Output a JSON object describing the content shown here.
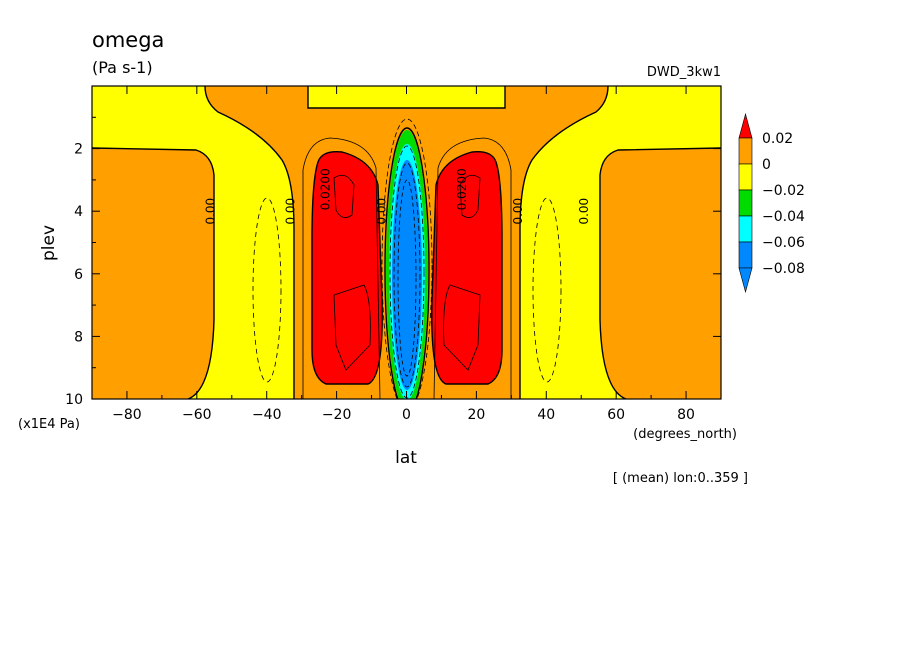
{
  "colors": {
    "red": "#ff0000",
    "orange": "#ff9f00",
    "yellow": "#ffff00",
    "green": "#00dc00",
    "cyan": "#00ffff",
    "blue": "#0088ff",
    "line": "#000000"
  },
  "chart_data": {
    "type": "heatmap",
    "title": "omega",
    "units": "(Pa s-1)",
    "dataset_label": "DWD_3kw1",
    "xlabel": "lat",
    "ylabel": "plev",
    "x_units": "(degrees_north)",
    "y_units": "(x1E4 Pa)",
    "footnote": "[ (mean) lon:0..359 ]",
    "xlim": [
      -90,
      90
    ],
    "ylim": [
      10,
      0
    ],
    "x_ticks": [
      -80,
      -60,
      -40,
      -20,
      0,
      20,
      40,
      60,
      80
    ],
    "y_ticks": [
      2,
      4,
      6,
      8,
      10
    ],
    "colorbar": {
      "labels": [
        "0.02",
        "0",
        "−0.02",
        "−0.04",
        "−0.06",
        "−0.08"
      ],
      "values": [
        0.02,
        0,
        -0.02,
        -0.04,
        -0.06,
        -0.08
      ],
      "bins": [
        {
          "range": "> 0.02",
          "color": "#ff0000"
        },
        {
          "range": "0 to 0.02",
          "color": "#ff9f00"
        },
        {
          "range": "-0.02 to 0",
          "color": "#ffff00"
        },
        {
          "range": "-0.04 to -0.02",
          "color": "#00dc00"
        },
        {
          "range": "-0.06 to -0.04",
          "color": "#00ffff"
        },
        {
          "range": "-0.08 to -0.06",
          "color": "#0088ff"
        },
        {
          "range": "< -0.08",
          "color": "#0088ff"
        }
      ]
    },
    "contour_labels": [
      {
        "text": "0.00",
        "lat": -55,
        "plev": 4.0
      },
      {
        "text": "0.00",
        "lat": -32,
        "plev": 4.0
      },
      {
        "text": "0.0200",
        "lat": -22,
        "plev": 3.3
      },
      {
        "text": "0.00",
        "lat": -6,
        "plev": 4.0
      },
      {
        "text": "0.0200",
        "lat": 17,
        "plev": 3.3
      },
      {
        "text": "0.00",
        "lat": 33,
        "plev": 4.0
      },
      {
        "text": "0.00",
        "lat": 52,
        "plev": 4.0
      }
    ]
  }
}
